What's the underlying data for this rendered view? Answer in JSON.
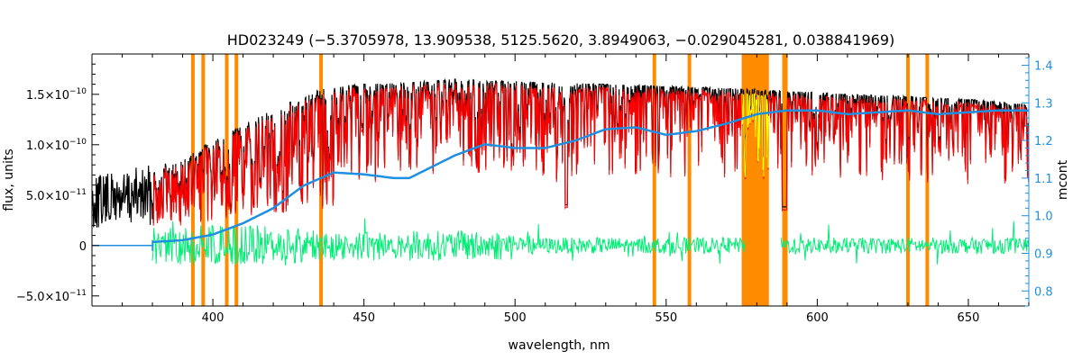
{
  "chart_data": {
    "type": "line",
    "title": "HD023249    (−5.3705978, 13.909538, 5125.5620, 3.8949063, −0.029045281, 0.038841969)",
    "xlabel": "wavelength, nm",
    "ylabel_left": "flux, units",
    "ylabel_right": "mcont",
    "xlim": [
      360,
      670
    ],
    "ylim_left": [
      -6e-11,
      1.9e-10
    ],
    "ylim_right": [
      0.76,
      1.43
    ],
    "x_ticks": [
      400,
      450,
      500,
      550,
      600,
      650
    ],
    "x_tick_labels": [
      "400",
      "450",
      "500",
      "550",
      "600",
      "650"
    ],
    "y_ticks_left": [
      -5e-11,
      0,
      5e-11,
      1e-10,
      1.5e-10
    ],
    "y_tick_labels_left": [
      {
        "m": "−5.0×10",
        "e": "−11"
      },
      {
        "m": "0",
        "e": ""
      },
      {
        "m": "5.0×10",
        "e": "−11"
      },
      {
        "m": "1.0×10",
        "e": "−10"
      },
      {
        "m": "1.5×10",
        "e": "−10"
      }
    ],
    "y_ticks_right": [
      0.8,
      0.9,
      1.0,
      1.1,
      1.2,
      1.3,
      1.4
    ],
    "y_tick_labels_right": [
      "0.8",
      "0.9",
      "1.0",
      "1.1",
      "1.2",
      "1.3",
      "1.4"
    ],
    "masked_lines_nm": [
      393.4,
      396.8,
      404.6,
      407.8,
      435.8,
      546.1,
      557.7,
      589.0,
      589.6,
      630.0,
      636.4
    ],
    "masked_band_nm": [
      575,
      584
    ],
    "series": [
      {
        "role": "observed",
        "color": "#000000",
        "continuum_x": [
          360,
          380,
          390,
          400,
          410,
          420,
          430,
          440,
          450,
          460,
          470,
          480,
          490,
          500,
          510,
          520,
          530,
          540,
          550,
          560,
          570,
          580,
          590,
          600,
          610,
          620,
          630,
          640,
          650,
          660,
          670
        ],
        "continuum_y": [
          7e-11,
          8e-11,
          8.5e-11,
          1.05e-10,
          1.2e-10,
          1.35e-10,
          1.5e-10,
          1.58e-10,
          1.6e-10,
          1.61e-10,
          1.63e-10,
          1.65e-10,
          1.64e-10,
          1.63e-10,
          1.62e-10,
          1.61e-10,
          1.6e-10,
          1.59e-10,
          1.58e-10,
          1.57e-10,
          1.56e-10,
          1.55e-10,
          1.53e-10,
          1.52e-10,
          1.5e-10,
          1.49e-10,
          1.48e-10,
          1.46e-10,
          1.45e-10,
          1.43e-10,
          1.4e-10
        ]
      },
      {
        "role": "model",
        "color": "#ff0000",
        "x_range": [
          380,
          670
        ]
      },
      {
        "role": "residuals",
        "color": "#00ee76",
        "x_range": [
          380,
          670
        ],
        "baseline": 0
      },
      {
        "role": "continuum (right axis)",
        "color": "#1f8fe0",
        "x": [
          360,
          380,
          390,
          400,
          410,
          420,
          430,
          440,
          450,
          460,
          465,
          470,
          480,
          490,
          500,
          510,
          520,
          530,
          540,
          550,
          560,
          570,
          580,
          590,
          600,
          610,
          620,
          630,
          640,
          650,
          660,
          670
        ],
        "y": [
          0.93,
          0.93,
          0.935,
          0.95,
          0.98,
          1.02,
          1.08,
          1.115,
          1.11,
          1.1,
          1.1,
          1.12,
          1.16,
          1.19,
          1.18,
          1.18,
          1.2,
          1.23,
          1.235,
          1.215,
          1.225,
          1.245,
          1.27,
          1.28,
          1.28,
          1.27,
          1.275,
          1.28,
          1.27,
          1.275,
          1.28,
          1.28
        ]
      }
    ]
  },
  "colors": {
    "observed": "#000000",
    "model": "#ff0000",
    "residuals": "#00ee76",
    "continuum": "#1f8fe0",
    "mask": "#ff8c00",
    "masked_model": "#ffff00",
    "axes": "#000000",
    "right_axis": "#1f8fe0"
  }
}
